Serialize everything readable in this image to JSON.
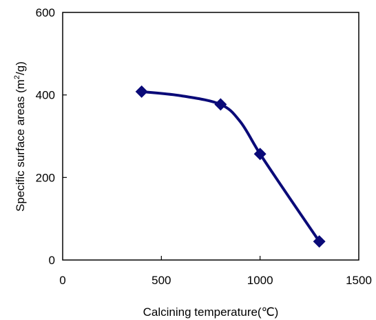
{
  "chart_data": {
    "type": "line",
    "title": "",
    "xlabel": "Calcining temperature(℃)",
    "ylabel_main": "Specific surface areas (m",
    "ylabel_sup": "2",
    "ylabel_end": "/g)",
    "xlim": [
      0,
      1500
    ],
    "ylim": [
      0,
      600
    ],
    "xticks": [
      0,
      500,
      1000,
      1500
    ],
    "yticks": [
      0,
      200,
      400,
      600
    ],
    "grid": false,
    "legend": "none",
    "series": [
      {
        "marker": "diamond",
        "color": "#0a0a78",
        "x": [
          400,
          800,
          1000,
          1300
        ],
        "y": [
          408,
          377,
          257,
          45
        ]
      }
    ],
    "curve": {
      "x": [
        400,
        600,
        800,
        900,
        1000,
        1150,
        1300
      ],
      "y": [
        408,
        398,
        377,
        335,
        257,
        150,
        45
      ]
    }
  }
}
